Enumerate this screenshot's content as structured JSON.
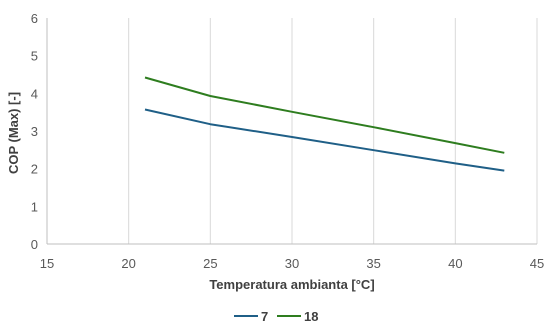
{
  "chart_data": {
    "type": "line",
    "title": "",
    "xlabel": "Temperatura ambianta [°C]",
    "ylabel": "COP (Max) [-]",
    "xlim": [
      15,
      45
    ],
    "ylim": [
      0,
      6
    ],
    "xticks": [
      15,
      20,
      25,
      30,
      35,
      40,
      45
    ],
    "yticks": [
      0,
      1,
      2,
      3,
      4,
      5,
      6
    ],
    "grid": "vertical",
    "legend_position": "bottom",
    "series": [
      {
        "name": "7",
        "color": "#1f5f87",
        "x": [
          21,
          25,
          30,
          35,
          40,
          43
        ],
        "y": [
          3.57,
          3.18,
          2.84,
          2.49,
          2.14,
          1.95
        ]
      },
      {
        "name": "18",
        "color": "#2e7d1f",
        "x": [
          21,
          25,
          30,
          35,
          40,
          43
        ],
        "y": [
          4.42,
          3.93,
          3.51,
          3.1,
          2.68,
          2.42
        ]
      }
    ]
  }
}
